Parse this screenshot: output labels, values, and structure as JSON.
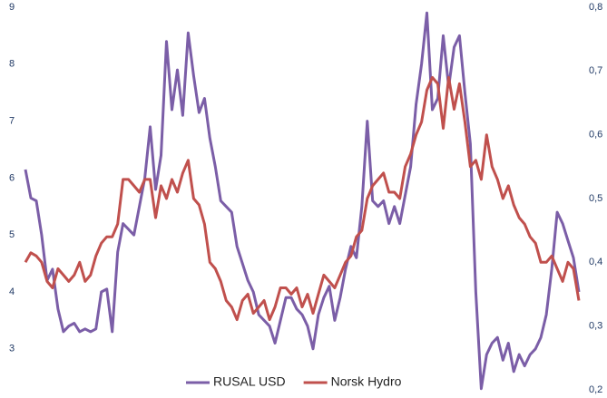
{
  "chart_data": {
    "type": "line",
    "ylim": [
      2.28,
      9
    ],
    "yticks": [
      3,
      4,
      5,
      6,
      7,
      8,
      9
    ],
    "y2lim": [
      0.2,
      0.8
    ],
    "y2ticks": [
      {
        "value": 0.2,
        "label": "0,2"
      },
      {
        "value": 0.3,
        "label": "0,3"
      },
      {
        "value": 0.4,
        "label": "0,4"
      },
      {
        "value": 0.5,
        "label": "0,5"
      },
      {
        "value": 0.6,
        "label": "0,6"
      },
      {
        "value": 0.7,
        "label": "0,7"
      },
      {
        "value": 0.8,
        "label": "0,8"
      }
    ],
    "grid": false,
    "legend": "bottom",
    "series": [
      {
        "name": "RUSAL USD",
        "color": "#7b5ea7",
        "values": [
          6.15,
          5.65,
          5.6,
          5.0,
          4.2,
          4.4,
          3.7,
          3.3,
          3.4,
          3.45,
          3.3,
          3.35,
          3.3,
          3.35,
          4.0,
          4.05,
          3.3,
          4.7,
          5.2,
          5.1,
          5.0,
          5.5,
          6.0,
          6.9,
          5.8,
          6.4,
          8.4,
          7.2,
          7.9,
          7.1,
          8.55,
          7.8,
          7.15,
          7.4,
          6.7,
          6.2,
          5.6,
          5.5,
          5.4,
          4.8,
          4.5,
          4.2,
          4.0,
          3.6,
          3.5,
          3.4,
          3.1,
          3.5,
          3.9,
          3.9,
          3.7,
          3.6,
          3.4,
          3.0,
          3.6,
          3.9,
          4.1,
          3.5,
          3.9,
          4.4,
          4.8,
          4.6,
          5.5,
          7.0,
          5.6,
          5.5,
          5.6,
          5.2,
          5.5,
          5.2,
          5.7,
          6.2,
          7.3,
          8.0,
          8.9,
          7.2,
          7.4,
          8.5,
          7.6,
          8.3,
          8.5,
          7.5,
          6.6,
          4.0,
          2.3,
          2.9,
          3.1,
          3.2,
          2.8,
          3.1,
          2.6,
          2.9,
          2.7,
          2.9,
          3.0,
          3.2,
          3.6,
          4.4,
          5.4,
          5.2,
          4.9,
          4.6,
          4.0
        ]
      },
      {
        "name": "Norsk Hydro",
        "color": "#c0504d",
        "axis": "y2",
        "values": [
          0.4,
          0.415,
          0.41,
          0.4,
          0.37,
          0.36,
          0.39,
          0.38,
          0.37,
          0.38,
          0.4,
          0.37,
          0.38,
          0.41,
          0.43,
          0.44,
          0.44,
          0.46,
          0.53,
          0.53,
          0.52,
          0.51,
          0.53,
          0.53,
          0.47,
          0.52,
          0.5,
          0.53,
          0.51,
          0.54,
          0.56,
          0.5,
          0.49,
          0.46,
          0.4,
          0.39,
          0.37,
          0.34,
          0.33,
          0.31,
          0.34,
          0.35,
          0.32,
          0.33,
          0.34,
          0.31,
          0.33,
          0.36,
          0.36,
          0.35,
          0.36,
          0.33,
          0.35,
          0.32,
          0.35,
          0.38,
          0.37,
          0.36,
          0.38,
          0.4,
          0.41,
          0.44,
          0.45,
          0.5,
          0.52,
          0.53,
          0.54,
          0.51,
          0.51,
          0.5,
          0.55,
          0.57,
          0.6,
          0.62,
          0.67,
          0.69,
          0.68,
          0.61,
          0.69,
          0.64,
          0.68,
          0.62,
          0.55,
          0.56,
          0.53,
          0.6,
          0.55,
          0.53,
          0.5,
          0.52,
          0.49,
          0.47,
          0.46,
          0.44,
          0.43,
          0.4,
          0.4,
          0.41,
          0.39,
          0.37,
          0.4,
          0.39,
          0.34
        ]
      }
    ]
  }
}
